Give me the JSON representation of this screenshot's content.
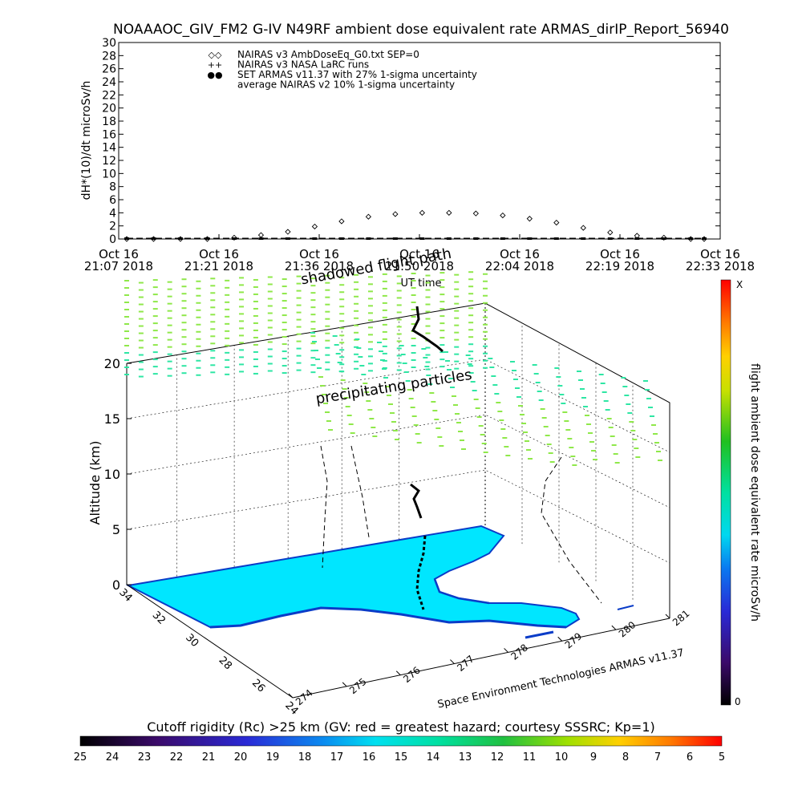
{
  "header": {
    "title": "NOAAAOC_GIV_FM2 G-IV    N49RF   ambient dose equivalent rate ARMAS_dirIP_Report_56940"
  },
  "chart_data": [
    {
      "type": "scatter",
      "ylabel": "dH*(10)/dt microSv/h",
      "xlabel": "UT time",
      "ylim": [
        0,
        30
      ],
      "yticks": [
        "0",
        "2",
        "4",
        "6",
        "8",
        "10",
        "12",
        "14",
        "16",
        "18",
        "20",
        "22",
        "24",
        "26",
        "28",
        "30"
      ],
      "xticks": [
        {
          "date": "Oct 16",
          "time": "21:07 2018"
        },
        {
          "date": "Oct 16",
          "time": "21:21 2018"
        },
        {
          "date": "Oct 16",
          "time": "21:36 2018"
        },
        {
          "date": "Oct 16",
          "time": "21:50 2018"
        },
        {
          "date": "Oct 16",
          "time": "22:04 2018"
        },
        {
          "date": "Oct 16",
          "time": "22:19 2018"
        },
        {
          "date": "Oct 16",
          "time": "22:33 2018"
        }
      ],
      "legend": {
        "placement": "top-left",
        "entries": [
          {
            "symbol": "◇◇",
            "label": "NAIRAS v3 AmbDoseEq_G0.txt SEP=0"
          },
          {
            "symbol": "++",
            "label": "NAIRAS v3 NASA LaRC runs"
          },
          {
            "symbol": "●●",
            "label": "SET ARMAS v11.37 with 27% 1-sigma uncertainty",
            "color": "#0000cc"
          },
          {
            "symbol": "",
            "label": "average NAIRAS v2 10% 1-sigma uncertainty"
          }
        ]
      },
      "series": [
        {
          "name": "NAIRAS v3 AmbDoseEq_G0.txt SEP=0",
          "marker": "diamond",
          "x_minutes": [
            0,
            4,
            8,
            12,
            16,
            20,
            24,
            28,
            32,
            36,
            40,
            44,
            48,
            52,
            56,
            60,
            64,
            68,
            72,
            76,
            80,
            84,
            86
          ],
          "y": [
            0,
            0,
            0,
            0,
            0.2,
            0.6,
            1.1,
            1.9,
            2.7,
            3.4,
            3.8,
            4.0,
            4.0,
            3.9,
            3.6,
            3.1,
            2.5,
            1.7,
            1.0,
            0.5,
            0.2,
            0,
            0
          ]
        },
        {
          "name": "SET ARMAS v11.37 with 27% 1-sigma uncertainty",
          "marker": "dot",
          "color": "#000000",
          "x_minutes": [
            0,
            4,
            8,
            12,
            16,
            20,
            24,
            28,
            32,
            36,
            40,
            44,
            48,
            52,
            56,
            60,
            64,
            68,
            72,
            76,
            80,
            84,
            86
          ],
          "y": [
            0,
            0,
            0,
            0,
            0,
            0,
            0,
            0,
            0,
            0,
            0,
            0,
            0,
            0,
            0,
            0,
            0,
            0,
            0,
            0,
            0,
            0,
            0
          ]
        }
      ]
    },
    {
      "type": "3d-trajectory",
      "zlabel": "Altitude (km)",
      "zticks": [
        "0",
        "5",
        "10",
        "15",
        "20"
      ],
      "lat_ticks": [
        "34",
        "32",
        "30",
        "28",
        "26",
        "24"
      ],
      "lon_ticks": [
        "274",
        "275",
        "276",
        "277",
        "278",
        "279",
        "280",
        "281"
      ],
      "annotations": [
        "shadowed flight path",
        "precipitating particles",
        "Space Environment Technologies ARMAS v11.37"
      ],
      "colorbar": {
        "label": "flight ambient dose equivalent rate microSv/h",
        "top_label": "X",
        "bottom_label": "0"
      }
    }
  ],
  "footer": {
    "cutoff_title": "Cutoff rigidity (Rc) >25 km (GV: red = greatest hazard; courtesy SSSRC; Kp=1)",
    "cutoff_ticks": [
      "25",
      "24",
      "23",
      "22",
      "21",
      "20",
      "19",
      "18",
      "17",
      "16",
      "15",
      "14",
      "13",
      "12",
      "11",
      "10",
      "9",
      "8",
      "7",
      "6",
      "5"
    ]
  },
  "colors": {
    "ocean": "#00e6ff",
    "coast": "#0a3cc8",
    "particles_high": "#8fe84a",
    "particles_low": "#2ee6a4",
    "track": "#000000"
  }
}
